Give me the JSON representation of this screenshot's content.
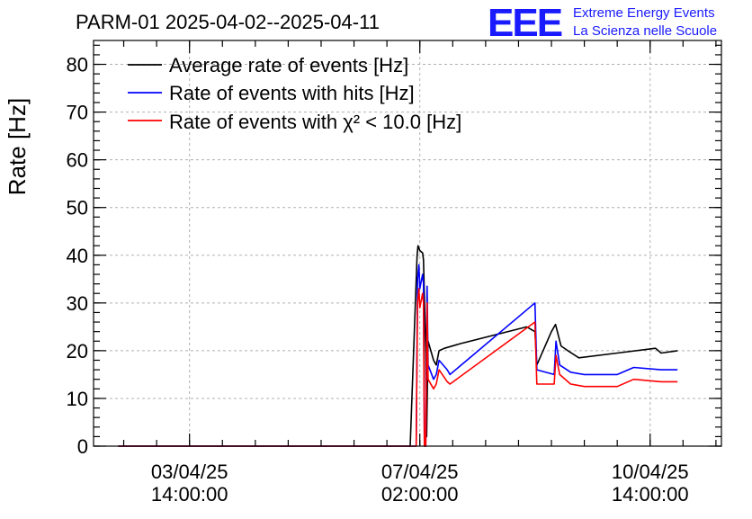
{
  "header": {
    "title": "PARM-01 2025-04-02--2025-04-11",
    "brand_logo": "EEE",
    "brand_line1": "Extreme Energy Events",
    "brand_line2": "La Scienza nelle Scuole"
  },
  "chart_data": {
    "type": "line",
    "title": "PARM-01 2025-04-02--2025-04-11",
    "ylabel": "Rate [Hz]",
    "xlabel": "",
    "ylim": [
      0,
      85
    ],
    "yticks": [
      0,
      10,
      20,
      30,
      40,
      50,
      60,
      70,
      80
    ],
    "xlim": [
      "2025-04-02T03:00:00",
      "2025-04-11T16:00:00"
    ],
    "xticks": [
      {
        "time": "2025-04-03T14:00:00",
        "date": "03/04/25",
        "clock": "14:00:00"
      },
      {
        "time": "2025-04-07T02:00:00",
        "date": "07/04/25",
        "clock": "02:00:00"
      },
      {
        "time": "2025-04-10T14:00:00",
        "date": "10/04/25",
        "clock": "14:00:00"
      }
    ],
    "grid": true,
    "legend_position": "top-left",
    "series": [
      {
        "name": "Average rate of events [Hz]",
        "color": "#000000",
        "points": [
          [
            "2025-04-02T12:00:00",
            0
          ],
          [
            "2025-04-06T22:30:00",
            0
          ],
          [
            "2025-04-07T01:00:00",
            40
          ],
          [
            "2025-04-07T01:20:00",
            42
          ],
          [
            "2025-04-07T02:00:00",
            41
          ],
          [
            "2025-04-07T03:00:00",
            40.5
          ],
          [
            "2025-04-07T03:20:00",
            39
          ],
          [
            "2025-04-07T04:10:00",
            20
          ],
          [
            "2025-04-07T04:30:00",
            2
          ],
          [
            "2025-04-07T05:00:00",
            22
          ],
          [
            "2025-04-07T07:00:00",
            18
          ],
          [
            "2025-04-07T08:00:00",
            17
          ],
          [
            "2025-04-07T09:00:00",
            20
          ],
          [
            "2025-04-07T11:00:00",
            20.5
          ],
          [
            "2025-04-07T17:00:00",
            21.5
          ],
          [
            "2025-04-08T17:00:00",
            25
          ],
          [
            "2025-04-08T20:00:00",
            24
          ],
          [
            "2025-04-08T20:40:00",
            17
          ],
          [
            "2025-04-09T02:00:00",
            24
          ],
          [
            "2025-04-09T03:30:00",
            25.5
          ],
          [
            "2025-04-09T05:30:00",
            21
          ],
          [
            "2025-04-09T08:00:00",
            20
          ],
          [
            "2025-04-09T12:00:00",
            18.5
          ],
          [
            "2025-04-10T02:00:00",
            19.5
          ],
          [
            "2025-04-10T16:00:00",
            20.5
          ],
          [
            "2025-04-10T18:00:00",
            19.5
          ],
          [
            "2025-04-11T00:00:00",
            20
          ]
        ]
      },
      {
        "name": "Rate of events with hits [Hz]",
        "color": "#0000ff",
        "points": [
          [
            "2025-04-02T12:00:00",
            0
          ],
          [
            "2025-04-07T00:40:00",
            0
          ],
          [
            "2025-04-07T01:10:00",
            35
          ],
          [
            "2025-04-07T01:40:00",
            38
          ],
          [
            "2025-04-07T02:00:00",
            33
          ],
          [
            "2025-04-07T03:00:00",
            36
          ],
          [
            "2025-04-07T03:20:00",
            34
          ],
          [
            "2025-04-07T03:40:00",
            0
          ],
          [
            "2025-04-07T04:10:00",
            0
          ],
          [
            "2025-04-07T04:40:00",
            33.5
          ],
          [
            "2025-04-07T05:00:00",
            17
          ],
          [
            "2025-04-07T07:00:00",
            14
          ],
          [
            "2025-04-07T08:00:00",
            15
          ],
          [
            "2025-04-07T09:00:00",
            18
          ],
          [
            "2025-04-07T12:00:00",
            16
          ],
          [
            "2025-04-07T13:00:00",
            15
          ],
          [
            "2025-04-08T20:00:00",
            30
          ],
          [
            "2025-04-08T20:40:00",
            16
          ],
          [
            "2025-04-09T03:00:00",
            15
          ],
          [
            "2025-04-09T03:40:00",
            22
          ],
          [
            "2025-04-09T05:00:00",
            17
          ],
          [
            "2025-04-09T09:00:00",
            15.5
          ],
          [
            "2025-04-09T14:00:00",
            15
          ],
          [
            "2025-04-10T02:00:00",
            15
          ],
          [
            "2025-04-10T08:00:00",
            16.5
          ],
          [
            "2025-04-10T18:00:00",
            16
          ],
          [
            "2025-04-11T00:00:00",
            16
          ]
        ]
      },
      {
        "name": "Rate of events with χ² < 10.0 [Hz]",
        "color": "#ff0000",
        "points": [
          [
            "2025-04-02T12:00:00",
            0
          ],
          [
            "2025-04-07T00:40:00",
            0
          ],
          [
            "2025-04-07T01:10:00",
            30
          ],
          [
            "2025-04-07T01:40:00",
            33
          ],
          [
            "2025-04-07T02:00:00",
            29
          ],
          [
            "2025-04-07T03:00:00",
            32
          ],
          [
            "2025-04-07T03:20:00",
            30
          ],
          [
            "2025-04-07T03:40:00",
            0
          ],
          [
            "2025-04-07T04:10:00",
            0
          ],
          [
            "2025-04-07T04:40:00",
            30
          ],
          [
            "2025-04-07T05:00:00",
            14
          ],
          [
            "2025-04-07T07:00:00",
            12
          ],
          [
            "2025-04-07T08:00:00",
            13
          ],
          [
            "2025-04-07T09:00:00",
            16
          ],
          [
            "2025-04-07T12:00:00",
            13.5
          ],
          [
            "2025-04-07T13:00:00",
            13
          ],
          [
            "2025-04-08T20:00:00",
            26
          ],
          [
            "2025-04-08T20:40:00",
            13
          ],
          [
            "2025-04-09T03:00:00",
            13
          ],
          [
            "2025-04-09T03:40:00",
            19
          ],
          [
            "2025-04-09T05:00:00",
            15
          ],
          [
            "2025-04-09T09:00:00",
            13
          ],
          [
            "2025-04-09T14:00:00",
            12.5
          ],
          [
            "2025-04-10T02:00:00",
            12.5
          ],
          [
            "2025-04-10T08:00:00",
            14
          ],
          [
            "2025-04-10T18:00:00",
            13.5
          ],
          [
            "2025-04-11T00:00:00",
            13.5
          ]
        ]
      }
    ]
  }
}
